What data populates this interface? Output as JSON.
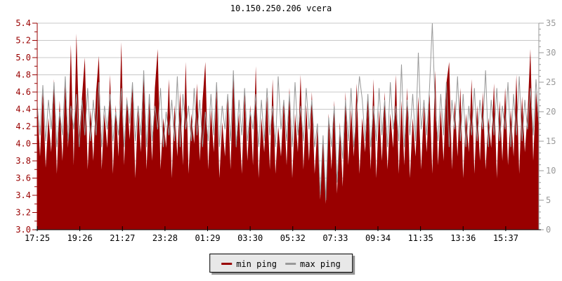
{
  "header": {
    "title": "10.150.250.206 vcera"
  },
  "chart_data": {
    "type": "line",
    "title": "10.150.250.206 vcera",
    "grid": {
      "horizontal": true,
      "vertical": false,
      "color": "#c8c8c8"
    },
    "left_axis": {
      "min": 3.0,
      "max": 5.4,
      "major_step": 0.2,
      "minor_step": 0.1,
      "color": "#990000",
      "ticks": [
        "5.4",
        "5.2",
        "5.0",
        "4.8",
        "4.6",
        "4.4",
        "4.2",
        "4.0",
        "3.8",
        "3.6",
        "3.4",
        "3.2",
        "3.0"
      ]
    },
    "right_axis": {
      "min": 0,
      "max": 35,
      "major_step": 5,
      "minor_step": 1,
      "color": "#999999",
      "ticks": [
        "35",
        "30",
        "25",
        "20",
        "15",
        "10",
        "5",
        "0"
      ]
    },
    "x_axis": {
      "color": "#000000",
      "labels": [
        "17:25",
        "19:26",
        "21:27",
        "23:28",
        "01:29",
        "03:30",
        "05:32",
        "07:33",
        "09:34",
        "11:35",
        "13:36",
        "15:37"
      ]
    },
    "legend_position": "bottom",
    "series": [
      {
        "name": "min ping",
        "color": "#990000",
        "axis": "left",
        "style": "area",
        "values": [
          4.45,
          3.85,
          4.62,
          3.72,
          4.3,
          3.9,
          4.75,
          3.65,
          4.5,
          3.8,
          4.7,
          3.95,
          5.15,
          3.75,
          5.28,
          4.1,
          4.55,
          5.0,
          3.7,
          4.4,
          3.8,
          4.6,
          5.02,
          3.7,
          4.35,
          3.95,
          4.8,
          3.65,
          4.45,
          3.85,
          5.18,
          3.75,
          4.55,
          4.05,
          4.7,
          3.6,
          4.4,
          3.9,
          4.85,
          3.7,
          4.5,
          3.8,
          4.65,
          5.1,
          3.7,
          4.3,
          3.95,
          4.75,
          3.6,
          4.45,
          3.85,
          4.6,
          3.75,
          4.95,
          3.65,
          4.35,
          4.0,
          4.7,
          3.8,
          4.5,
          4.95,
          3.7,
          4.4,
          3.9,
          4.65,
          3.6,
          4.25,
          3.85,
          4.55,
          3.7,
          4.8,
          3.95,
          4.35,
          3.65,
          4.6,
          3.8,
          4.45,
          3.75,
          4.9,
          3.6,
          4.3,
          3.9,
          4.55,
          3.7,
          4.75,
          3.65,
          4.2,
          3.85,
          4.5,
          3.75,
          4.65,
          3.6,
          4.35,
          3.9,
          4.8,
          3.7,
          4.45,
          3.8,
          4.6,
          3.65,
          4.2,
          3.35,
          4.1,
          3.3,
          4.35,
          3.7,
          4.5,
          3.42,
          4.25,
          3.5,
          4.6,
          3.75,
          4.4,
          3.85,
          4.7,
          3.65,
          4.3,
          3.9,
          4.55,
          3.7,
          4.75,
          3.6,
          4.4,
          3.8,
          4.6,
          3.7,
          4.35,
          3.95,
          4.8,
          3.65,
          4.5,
          3.75,
          4.65,
          3.6,
          4.3,
          3.85,
          4.55,
          3.7,
          4.45,
          3.9,
          4.6,
          3.65,
          4.85,
          3.75,
          4.4,
          3.8,
          4.7,
          4.95,
          3.7,
          4.5,
          3.85,
          4.65,
          3.6,
          4.35,
          3.9,
          4.75,
          3.65,
          4.45,
          3.8,
          4.6,
          3.7,
          4.3,
          3.95,
          4.7,
          3.6,
          4.5,
          3.8,
          4.65,
          3.75,
          4.4,
          3.85,
          4.8,
          3.65,
          4.55,
          3.9,
          4.35,
          5.1,
          3.8,
          4.6,
          4.2
        ]
      },
      {
        "name": "max ping",
        "color": "#999999",
        "axis": "right",
        "style": "line",
        "values": [
          21,
          16,
          24.5,
          15,
          22,
          17,
          25,
          14,
          20,
          16,
          26,
          15,
          21,
          17,
          23,
          14,
          22,
          16,
          24,
          15,
          22,
          16,
          25,
          14,
          21,
          17,
          23,
          15,
          20,
          16,
          24,
          14,
          22,
          18,
          25,
          15,
          21,
          16,
          27,
          14,
          23,
          15,
          21,
          17,
          24,
          14,
          20,
          16,
          22,
          15,
          26,
          14,
          23,
          17,
          21,
          15,
          24,
          16,
          22,
          14,
          20,
          15,
          23,
          16,
          25,
          14,
          21,
          17,
          23,
          15,
          27,
          14,
          22,
          16,
          24,
          15,
          20,
          17,
          23,
          14,
          22,
          15,
          24,
          16,
          21,
          14,
          26,
          17,
          22,
          15,
          23,
          14,
          25,
          16,
          21,
          15,
          24,
          17,
          22,
          14,
          18,
          6,
          16,
          5,
          19,
          14,
          21,
          8,
          17,
          12,
          22,
          15,
          24,
          14,
          20,
          26,
          22,
          15,
          23,
          14,
          21,
          15,
          24,
          16,
          22,
          14,
          25,
          17,
          21,
          15,
          28,
          14,
          22,
          16,
          23,
          15,
          30,
          17,
          22,
          16,
          24,
          35,
          21,
          15,
          23,
          16,
          25,
          14,
          22,
          17,
          26,
          15,
          23,
          14,
          21,
          16,
          24,
          15,
          22,
          17,
          27,
          14,
          22,
          16,
          24,
          15,
          21,
          17,
          25,
          14,
          23,
          16,
          26,
          15,
          22,
          17,
          24,
          16,
          25.5,
          18
        ]
      }
    ]
  }
}
